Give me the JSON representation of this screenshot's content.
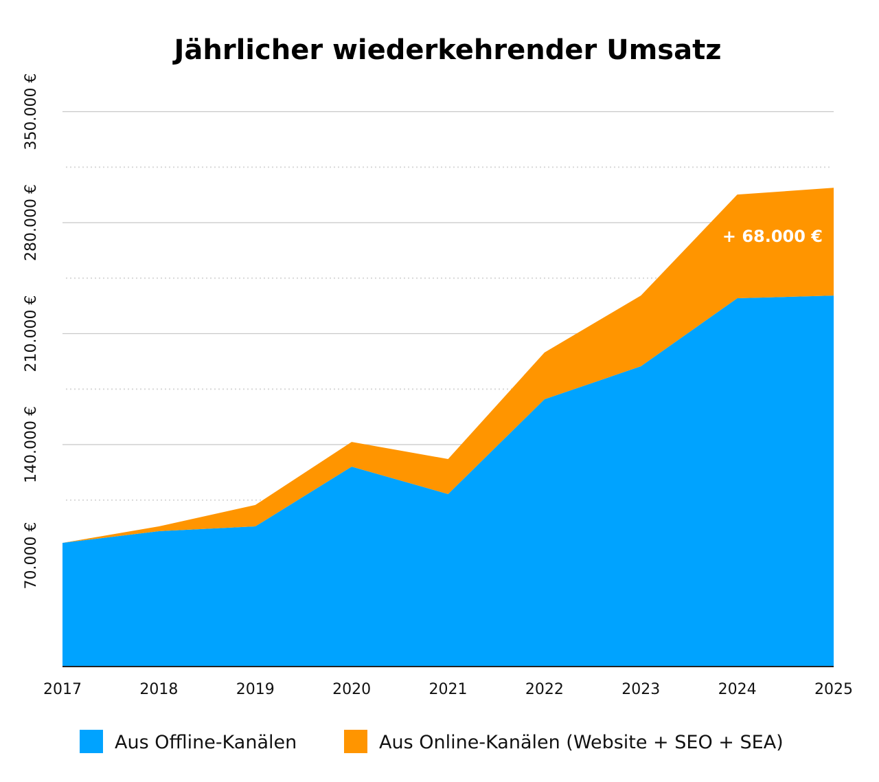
{
  "chart_data": {
    "type": "area",
    "stacked": true,
    "title": "Jährlicher wiederkehrender Umsatz",
    "xlabel": "",
    "ylabel": "",
    "categories": [
      "2017",
      "2018",
      "2019",
      "2020",
      "2021",
      "2022",
      "2023",
      "2024",
      "2025"
    ],
    "ylim": [
      0,
      350000
    ],
    "y_ticks": [
      70000,
      140000,
      210000,
      280000,
      350000
    ],
    "y_tick_labels": [
      "70.000 €",
      "140.000 €",
      "210.000 €",
      "280.000 €",
      "350.000 €"
    ],
    "grid": true,
    "legend_position": "bottom",
    "series": [
      {
        "name": "Aus Offline-Kanälen",
        "color": "#00a3ff",
        "values": [
          78000,
          85400,
          88400,
          126100,
          108800,
          168600,
          189400,
          232300,
          234000
        ]
      },
      {
        "name": "Aus Online-Kanälen (Website + SEO + SEA)",
        "color": "#ff9500",
        "values": [
          0,
          3000,
          13500,
          15600,
          22100,
          29500,
          44600,
          65400,
          68000
        ]
      }
    ],
    "annotations": [
      {
        "text": "+ 68.000 €",
        "category": "2025",
        "series": "Aus Online-Kanälen (Website + SEO + SEA)"
      }
    ]
  }
}
